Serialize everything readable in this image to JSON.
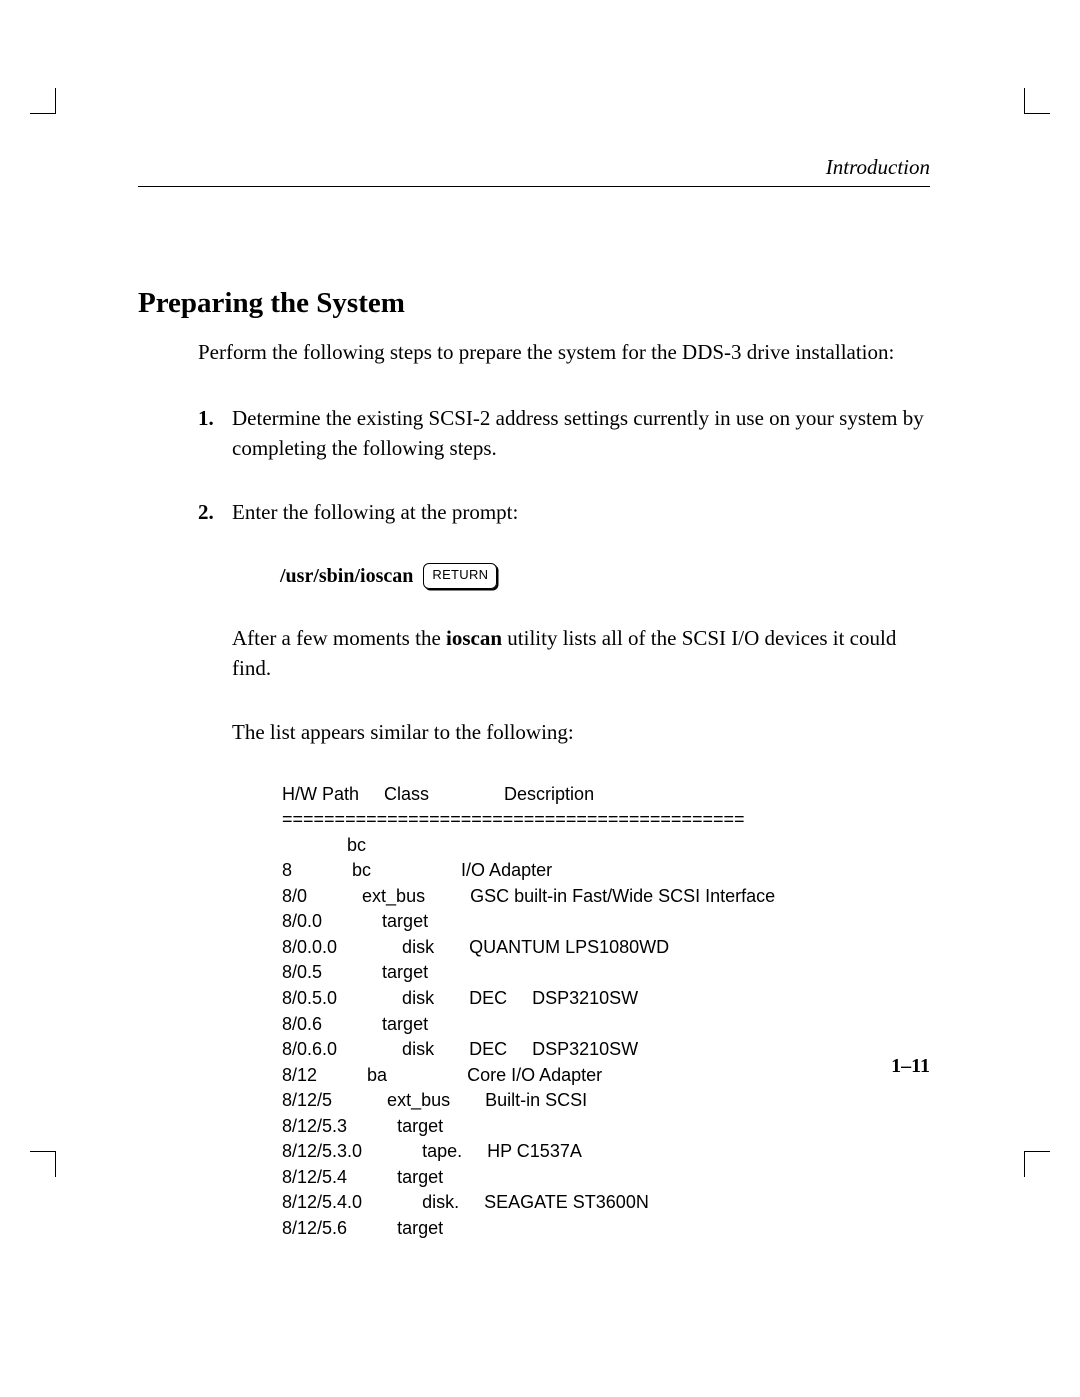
{
  "header": {
    "running": "Introduction"
  },
  "title": "Preparing the System",
  "intro": "Perform the following steps to prepare the system for the DDS-3 drive installation:",
  "steps": {
    "s1": {
      "num": "1.",
      "text": "Determine the existing SCSI-2 address settings currently in use on your system by completing the following steps."
    },
    "s2": {
      "num": "2.",
      "lead": "Enter the following at the prompt:",
      "cmd": "/usr/sbin/ioscan",
      "key": "RETURN",
      "after_a": "After a few moments the ",
      "after_b": "ioscan",
      "after_c": " utility lists all of the SCSI I/O devices it could find.",
      "listlead": "The list appears similar to the following:"
    }
  },
  "listing": "H/W Path     Class               Description\n============================================\n             bc\n8            bc                  I/O Adapter\n8/0           ext_bus         GSC built-in Fast/Wide SCSI Interface\n8/0.0            target\n8/0.0.0             disk       QUANTUM LPS1080WD\n8/0.5            target\n8/0.5.0             disk       DEC     DSP3210SW\n8/0.6            target\n8/0.6.0             disk       DEC     DSP3210SW\n8/12          ba                Core I/O Adapter\n8/12/5           ext_bus       Built-in SCSI\n8/12/5.3          target\n8/12/5.3.0            tape.     HP C1537A\n8/12/5.4          target\n8/12/5.4.0            disk.     SEAGATE ST3600N\n8/12/5.6          target",
  "pagenum": "1–11"
}
